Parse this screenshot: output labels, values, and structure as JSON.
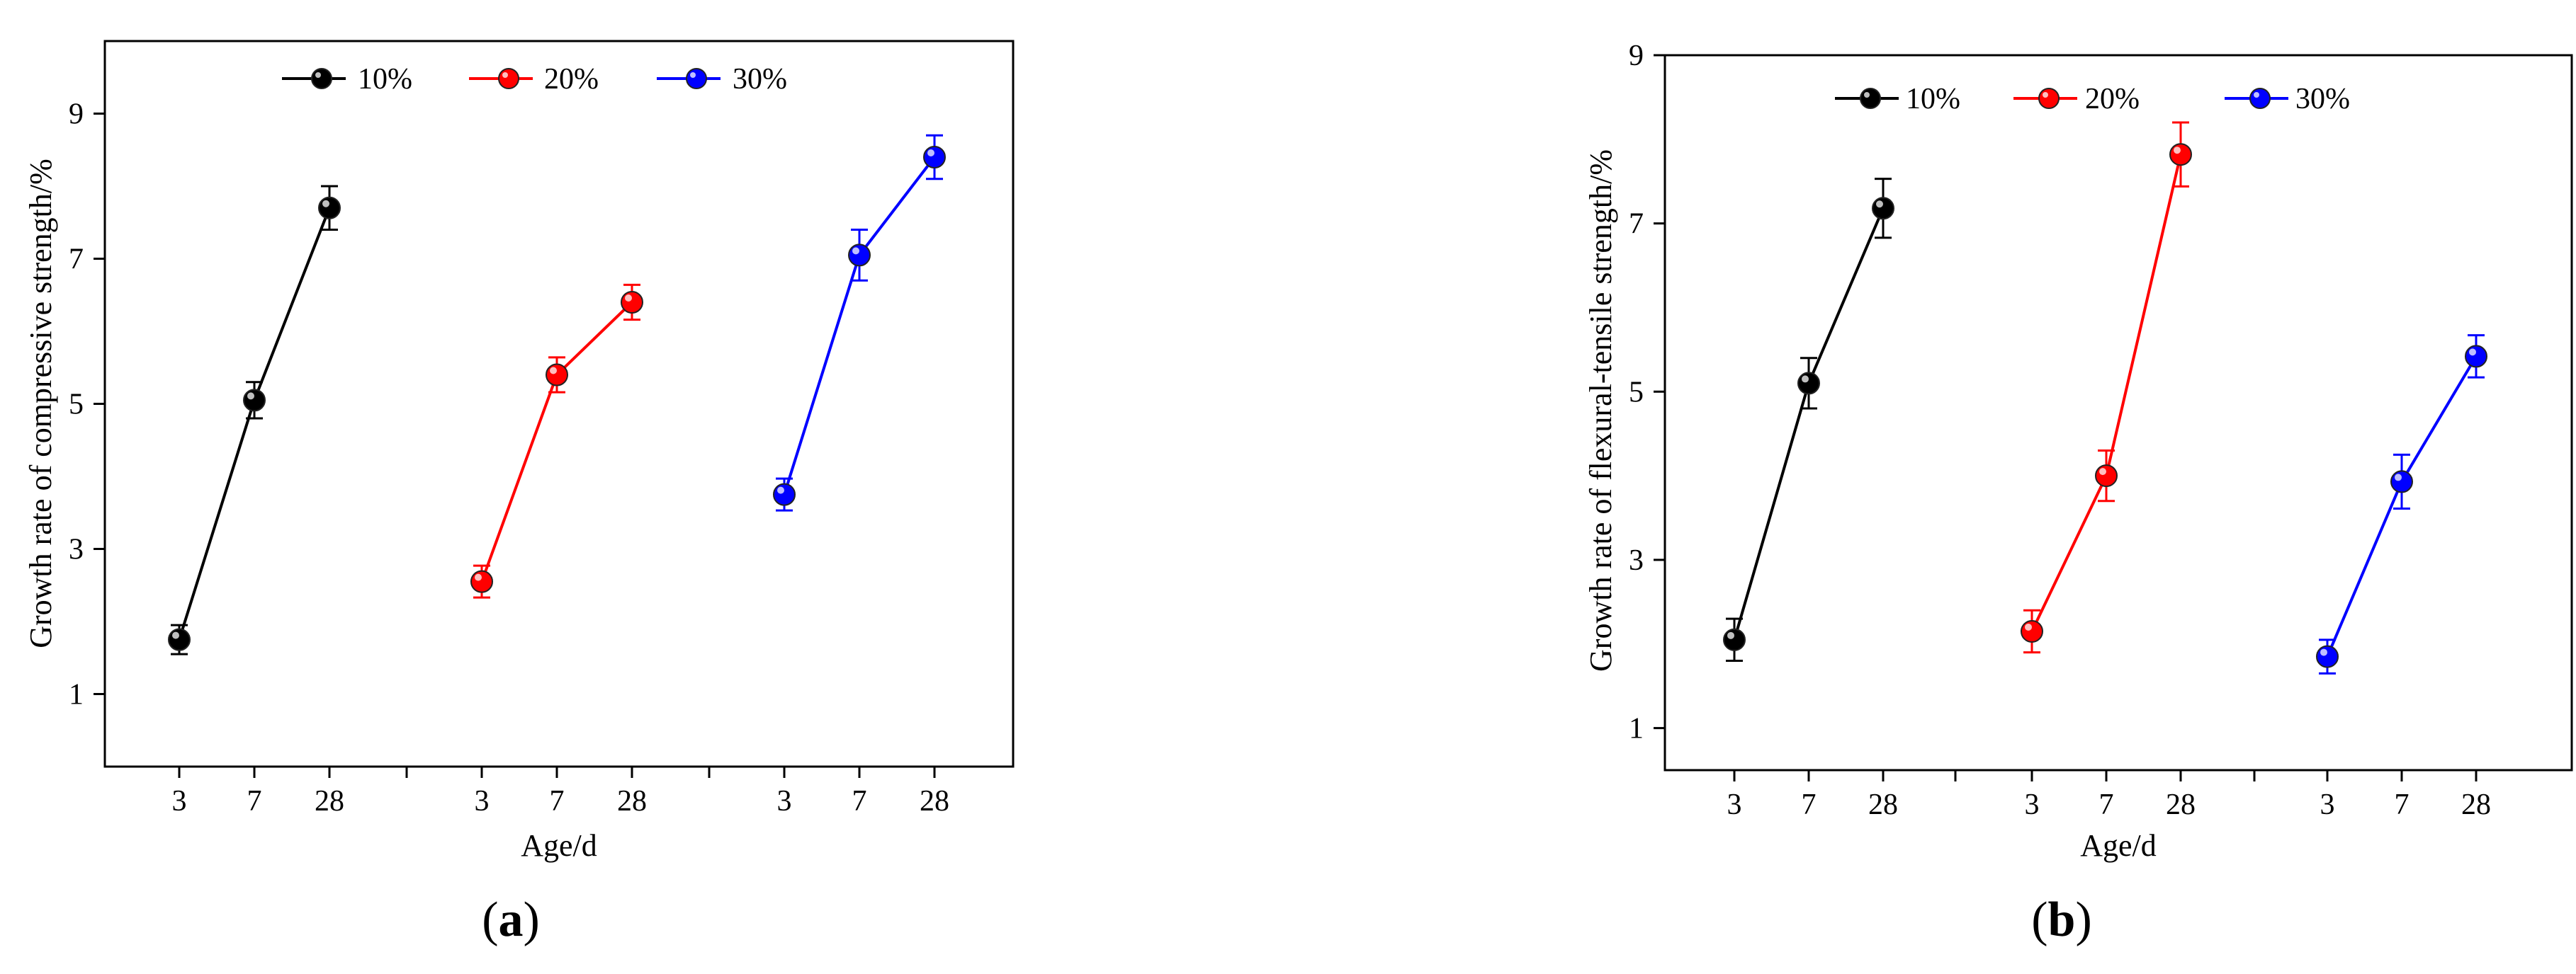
{
  "figure": {
    "panel_a_label": {
      "open": "(",
      "letter": "a",
      "close": ")"
    },
    "panel_b_label": {
      "open": "(",
      "letter": "b",
      "close": ")"
    }
  },
  "chart_data": [
    {
      "type": "line",
      "panel": "a",
      "ylabel": "Growth rate of compressive strength/%",
      "xlabel": "Age/d",
      "ylim": [
        0,
        10
      ],
      "yticks": [
        1,
        3,
        5,
        7,
        9
      ],
      "grid": false,
      "legend_position": "top",
      "series": [
        {
          "name": "10%",
          "color": "#000000",
          "x": [
            "3",
            "7",
            "28"
          ],
          "values": [
            1.75,
            5.05,
            7.7
          ],
          "error": [
            0.2,
            0.25,
            0.3
          ]
        },
        {
          "name": "20%",
          "color": "#ff0000",
          "x": [
            "3",
            "7",
            "28"
          ],
          "values": [
            2.55,
            5.4,
            6.4
          ],
          "error": [
            0.22,
            0.24,
            0.24
          ]
        },
        {
          "name": "30%",
          "color": "#0000ff",
          "x": [
            "3",
            "7",
            "28"
          ],
          "values": [
            3.75,
            7.05,
            8.4
          ],
          "error": [
            0.22,
            0.35,
            0.3
          ]
        }
      ]
    },
    {
      "type": "line",
      "panel": "b",
      "ylabel": "Growth rate of flexural-tensile strength/%",
      "xlabel": "Age/d",
      "ylim": [
        0.5,
        9
      ],
      "yticks": [
        1,
        3,
        5,
        7,
        9
      ],
      "grid": false,
      "legend_position": "top",
      "series": [
        {
          "name": "10%",
          "color": "#000000",
          "x": [
            "3",
            "7",
            "28"
          ],
          "values": [
            2.05,
            5.1,
            7.18
          ],
          "error": [
            0.25,
            0.3,
            0.35
          ]
        },
        {
          "name": "20%",
          "color": "#ff0000",
          "x": [
            "3",
            "7",
            "28"
          ],
          "values": [
            2.15,
            4.0,
            7.82
          ],
          "error": [
            0.25,
            0.3,
            0.38
          ]
        },
        {
          "name": "30%",
          "color": "#0000ff",
          "x": [
            "3",
            "7",
            "28"
          ],
          "values": [
            1.85,
            3.93,
            5.42
          ],
          "error": [
            0.2,
            0.32,
            0.25
          ]
        }
      ]
    }
  ]
}
